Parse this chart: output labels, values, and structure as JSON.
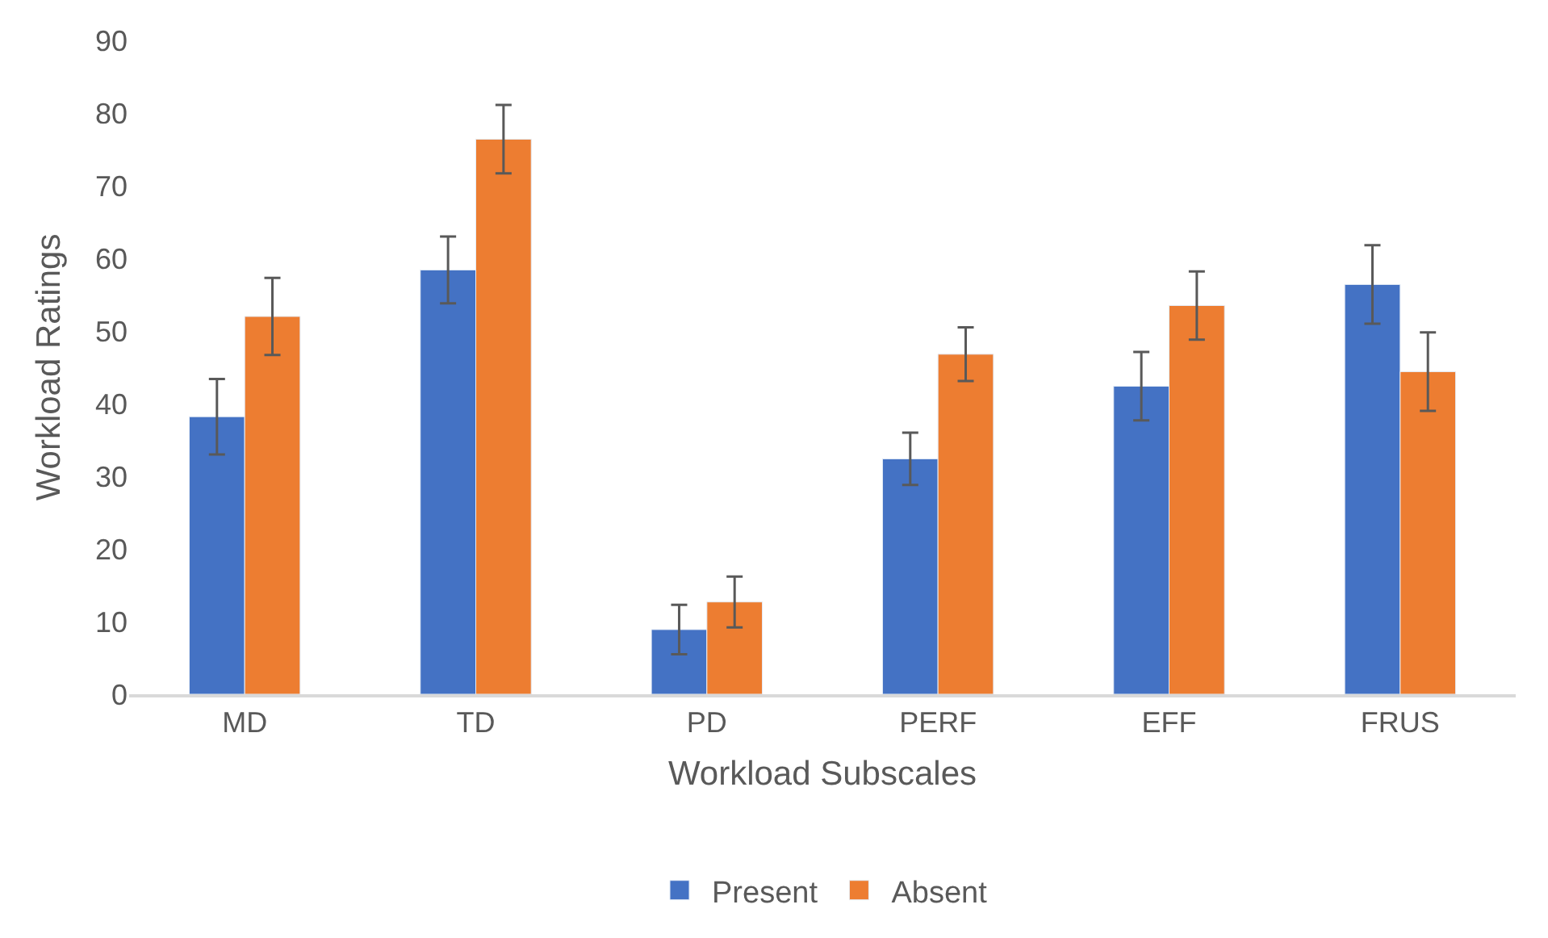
{
  "chart_data": {
    "type": "bar",
    "xlabel": "Workload Subscales",
    "ylabel": "Workload Ratings",
    "categories": [
      "MD",
      "TD",
      "PD",
      "PERF",
      "EFF",
      "FRUS"
    ],
    "series": [
      {
        "name": "Present",
        "color": "#4472c4",
        "values": [
          38.2,
          58.4,
          8.9,
          32.4,
          42.4,
          56.4
        ],
        "errors": [
          5.2,
          4.6,
          3.4,
          3.6,
          4.7,
          5.4
        ]
      },
      {
        "name": "Absent",
        "color": "#ed7d31",
        "values": [
          52.0,
          76.4,
          12.7,
          46.8,
          53.5,
          44.4
        ],
        "errors": [
          5.3,
          4.7,
          3.5,
          3.7,
          4.7,
          5.4
        ]
      }
    ],
    "ylim": [
      0,
      90
    ],
    "yticks": [
      0,
      10,
      20,
      30,
      40,
      50,
      60,
      70,
      80,
      90
    ],
    "grid": false,
    "legend": "bottom"
  }
}
